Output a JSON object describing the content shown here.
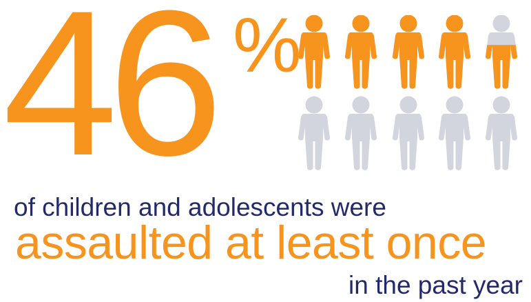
{
  "headline": {
    "number": "46",
    "unit": "%"
  },
  "statement": {
    "line_one": "of children and adolescents were",
    "line_two": "assaulted at least once",
    "line_three": "in the past year"
  },
  "pictogram": {
    "total_figures": 10,
    "share_highlighted": 0.46,
    "highlight_icon": "child-figure-icon",
    "base_icon": "child-figure-icon"
  },
  "colors": {
    "highlight": "#F7941D",
    "muted": "#D2D4DE",
    "text_dark": "#232A6B",
    "text_accent": "#F7941D"
  }
}
